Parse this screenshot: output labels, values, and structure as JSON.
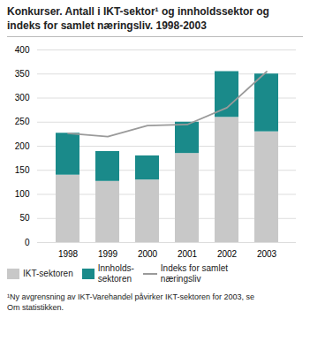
{
  "chart_data": {
    "type": "bar",
    "title": "Konkurser. Antall i IKT-sektor¹ og innholdssektor og\nindeks for samlet næringsliv. 1998-2003",
    "categories": [
      "1998",
      "1999",
      "2000",
      "2001",
      "2002",
      "2003"
    ],
    "series": [
      {
        "name": "IKT-sektoren",
        "type": "bar",
        "color": "#c8c8c8",
        "values": [
          140,
          127,
          130,
          185,
          260,
          230
        ]
      },
      {
        "name": "Innholds-\nsektoren",
        "type": "bar",
        "color": "#1a8a8a",
        "values": [
          87,
          62,
          50,
          65,
          95,
          120
        ]
      },
      {
        "name": "Indeks for samlet\nnæringsliv",
        "type": "line",
        "color": "#9a9a9a",
        "values": [
          227,
          220,
          243,
          245,
          280,
          355
        ]
      }
    ],
    "stacked": true,
    "ylim": [
      0,
      400
    ],
    "yticks": [
      0,
      50,
      100,
      150,
      200,
      250,
      300,
      350,
      400
    ],
    "grid": true,
    "legend": "bottom",
    "footnote": "¹Ny avgrensning av IKT-Varehandel påvirker IKT-sektoren for 2003, se\nOm statistikken."
  }
}
